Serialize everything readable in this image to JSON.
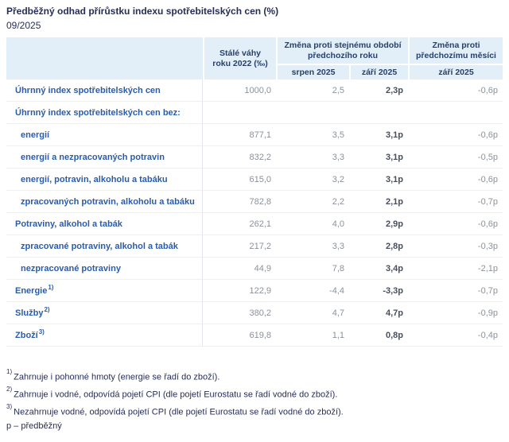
{
  "page": {
    "title": "Předběžný odhad přírůstku indexu spotřebitelských cen (%)",
    "period": "09/2025"
  },
  "table": {
    "header": {
      "weights": "Stálé váhy\nroku 2022 (‰)",
      "group_yoy": "Změna proti stejnému období\npředchozího roku",
      "group_mom": "Změna proti\npředchozímu měsíci",
      "sub_aug": "srpen 2025",
      "sub_sep": "září 2025",
      "sub_mom": "září 2025"
    },
    "rows": [
      {
        "label": "Úhrnný index spotřebitelských cen",
        "indent": false,
        "weight": "1000,0",
        "yoy_aug": "2,5",
        "yoy_sep": "2,3p",
        "mom_sep": "-0,6p"
      },
      {
        "label": "Úhrnný index spotřebitelských cen bez:",
        "indent": false,
        "weight": "",
        "yoy_aug": "",
        "yoy_sep": "",
        "mom_sep": ""
      },
      {
        "label": "energií",
        "indent": true,
        "weight": "877,1",
        "yoy_aug": "3,5",
        "yoy_sep": "3,1p",
        "mom_sep": "-0,6p"
      },
      {
        "label": "energií a nezpracovaných potravin",
        "indent": true,
        "weight": "832,2",
        "yoy_aug": "3,3",
        "yoy_sep": "3,1p",
        "mom_sep": "-0,5p"
      },
      {
        "label": "energií, potravin, alkoholu a tabáku",
        "indent": true,
        "weight": "615,0",
        "yoy_aug": "3,2",
        "yoy_sep": "3,1p",
        "mom_sep": "-0,6p"
      },
      {
        "label": "zpracovaných potravin, alkoholu a tabáku",
        "indent": true,
        "weight": "782,8",
        "yoy_aug": "2,2",
        "yoy_sep": "2,1p",
        "mom_sep": "-0,7p"
      },
      {
        "label": "Potraviny, alkohol a tabák",
        "indent": false,
        "weight": "262,1",
        "yoy_aug": "4,0",
        "yoy_sep": "2,9p",
        "mom_sep": "-0,6p"
      },
      {
        "label": "zpracované potraviny, alkohol a tabák",
        "indent": true,
        "weight": "217,2",
        "yoy_aug": "3,3",
        "yoy_sep": "2,8p",
        "mom_sep": "-0,3p"
      },
      {
        "label": "nezpracované potraviny",
        "indent": true,
        "weight": "44,9",
        "yoy_aug": "7,8",
        "yoy_sep": "3,4p",
        "mom_sep": "-2,1p"
      },
      {
        "label": "Energie",
        "sup": "1)",
        "indent": false,
        "weight": "122,9",
        "yoy_aug": "-4,4",
        "yoy_sep": "-3,3p",
        "mom_sep": "-0,7p"
      },
      {
        "label": "Služby",
        "sup": "2)",
        "indent": false,
        "weight": "380,2",
        "yoy_aug": "4,7",
        "yoy_sep": "4,7p",
        "mom_sep": "-0,9p"
      },
      {
        "label": "Zboží",
        "sup": "3)",
        "indent": false,
        "weight": "619,8",
        "yoy_aug": "1,1",
        "yoy_sep": "0,8p",
        "mom_sep": "-0,4p"
      }
    ]
  },
  "footnotes": [
    {
      "sup": "1)",
      "text": "Zahrnuje i pohonné hmoty (energie se řadí do zboží)."
    },
    {
      "sup": "2)",
      "text": "Zahrnuje i vodné, odpovídá pojetí CPI (dle pojetí Eurostatu se řadí vodné do zboží)."
    },
    {
      "sup": "3)",
      "text": "Nezahrnuje vodné, odpovídá pojetí CPI (dle pojetí Eurostatu se řadí vodné do zboží)."
    },
    {
      "sup": "",
      "text": "p – předběžný"
    }
  ]
}
